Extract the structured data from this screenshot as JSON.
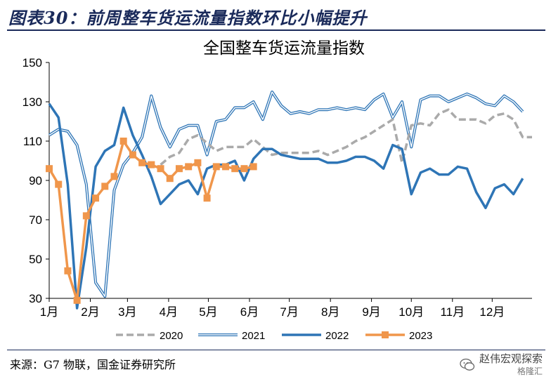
{
  "header": {
    "title": "图表30：前周整车货运流量指数环比小幅提升"
  },
  "footer": {
    "source": "来源：G7 物联，国金证券研究所",
    "watermark_main": "赵伟宏观探索",
    "watermark_sub": "格隆汇"
  },
  "colors": {
    "header": "#1a2a5a",
    "s2020": "#aaaaaa",
    "s2021": "#2e75b6",
    "s2022": "#2e75b6",
    "s2023": "#f0964b"
  },
  "chart_data": {
    "type": "line",
    "title": "全国整车货运流量指数",
    "ylim": [
      30,
      150
    ],
    "yticks": [
      30,
      50,
      70,
      90,
      110,
      130,
      150
    ],
    "xlim": [
      1,
      53
    ],
    "xtick_labels": [
      "1月",
      "2月",
      "3月",
      "4月",
      "5月",
      "6月",
      "7月",
      "8月",
      "9月",
      "10月",
      "11月",
      "12月"
    ],
    "xtick_weeks": [
      1,
      5.43,
      9.43,
      13.86,
      18.14,
      22.57,
      26.86,
      31.29,
      35.71,
      40,
      44.43,
      48.71
    ],
    "legend": "bottom",
    "series": [
      {
        "name": "2020",
        "style": "dashed",
        "x": [
          13,
          14,
          15,
          16,
          17,
          18,
          19,
          20,
          21,
          22,
          23,
          24,
          25,
          26,
          27,
          28,
          29,
          30,
          31,
          32,
          33,
          34,
          35,
          36,
          37,
          38,
          39,
          40,
          41,
          42,
          43,
          44,
          45,
          46,
          47,
          48,
          49,
          50,
          51,
          52,
          53
        ],
        "values": [
          98,
          102,
          104,
          111,
          113,
          109,
          105,
          107,
          107,
          107,
          111,
          107,
          103,
          104,
          104,
          104,
          104,
          105,
          103,
          105,
          107,
          110,
          112,
          115,
          118,
          121,
          99,
          118,
          119,
          118,
          124,
          126,
          121,
          121,
          121,
          119,
          123,
          124,
          121,
          112,
          112
        ]
      },
      {
        "name": "2021",
        "style": "double",
        "x": [
          1,
          2,
          3,
          4,
          5,
          6,
          7,
          8,
          9,
          10,
          11,
          12,
          13,
          14,
          15,
          16,
          17,
          18,
          19,
          20,
          21,
          22,
          23,
          24,
          25,
          26,
          27,
          28,
          29,
          30,
          31,
          32,
          33,
          34,
          35,
          36,
          37,
          38,
          39,
          40,
          41,
          42,
          43,
          44,
          45,
          46,
          47,
          48,
          49,
          50,
          51,
          52
        ],
        "values": [
          113,
          116,
          115,
          108,
          88,
          38,
          31,
          85,
          98,
          104,
          112,
          133,
          117,
          107,
          116,
          118,
          118,
          103,
          120,
          121,
          127,
          127,
          130,
          121,
          135,
          128,
          124,
          125,
          124,
          126,
          126,
          127,
          126,
          127,
          126,
          131,
          134,
          122,
          130,
          107,
          131,
          133,
          133,
          130,
          132,
          134,
          132,
          129,
          128,
          133,
          130,
          125
        ]
      },
      {
        "name": "2022",
        "style": "solid",
        "x": [
          1,
          2,
          3,
          4,
          5,
          6,
          7,
          8,
          9,
          10,
          11,
          12,
          13,
          14,
          15,
          16,
          17,
          18,
          19,
          20,
          21,
          22,
          23,
          24,
          25,
          26,
          27,
          28,
          29,
          30,
          31,
          32,
          33,
          34,
          35,
          36,
          37,
          38,
          39,
          40,
          41,
          42,
          43,
          44,
          45,
          46,
          47,
          48,
          49,
          50,
          51,
          52
        ],
        "values": [
          129,
          122,
          88,
          25,
          56,
          97,
          105,
          108,
          127,
          113,
          103,
          92,
          78,
          83,
          88,
          90,
          83,
          96,
          98,
          98,
          100,
          90,
          101,
          106,
          106,
          103,
          102,
          101,
          101,
          101,
          99,
          99,
          100,
          102,
          102,
          100,
          96,
          108,
          106,
          83,
          94,
          96,
          93,
          93,
          97,
          96,
          84,
          76,
          86,
          88,
          83,
          91
        ]
      },
      {
        "name": "2023",
        "style": "marker",
        "x": [
          1,
          2,
          3,
          4,
          5,
          6,
          7,
          8,
          9,
          10,
          11,
          12,
          13,
          14,
          15,
          16,
          17,
          18,
          19,
          20,
          21,
          22,
          23
        ],
        "values": [
          96,
          88,
          44,
          29,
          72,
          81,
          87,
          92,
          110,
          103,
          99,
          98,
          96,
          91,
          96,
          97,
          99,
          81,
          97,
          97,
          96,
          96,
          97
        ]
      }
    ]
  }
}
